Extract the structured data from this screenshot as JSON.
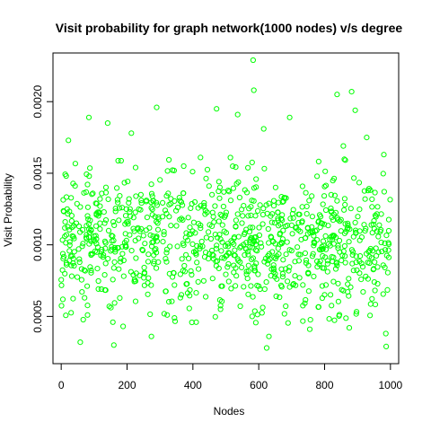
{
  "chart_data": {
    "type": "scatter",
    "title": "Visit probability for graph network(1000 nodes) v/s degree",
    "xlabel": "Nodes",
    "ylabel": "Visit Probability",
    "xlim": [
      -25,
      1025
    ],
    "ylim": [
      0.00017,
      0.00234
    ],
    "xticks": [
      0,
      200,
      400,
      600,
      800,
      1000
    ],
    "xtick_labels": [
      "0",
      "200",
      "400",
      "600",
      "800",
      "1000"
    ],
    "yticks": [
      0.0005,
      0.001,
      0.0015,
      0.002
    ],
    "ytick_labels": [
      "0.0005",
      "0.0010",
      "0.0015",
      "0.0020"
    ],
    "grid": false,
    "legend": "none",
    "marker": "open-circle",
    "point_color": "#00ff00",
    "n_points": 1000,
    "notable_points": [
      {
        "x": 583,
        "y": 0.00229
      },
      {
        "x": 585,
        "y": 0.00208
      },
      {
        "x": 882,
        "y": 0.00207
      },
      {
        "x": 838,
        "y": 0.00205
      },
      {
        "x": 290,
        "y": 0.00196
      },
      {
        "x": 472,
        "y": 0.00195
      },
      {
        "x": 893,
        "y": 0.00194
      },
      {
        "x": 536,
        "y": 0.00191
      },
      {
        "x": 694,
        "y": 0.00189
      },
      {
        "x": 84,
        "y": 0.00189
      },
      {
        "x": 141,
        "y": 0.00185
      },
      {
        "x": 615,
        "y": 0.00181
      },
      {
        "x": 213,
        "y": 0.00178
      },
      {
        "x": 928,
        "y": 0.00175
      },
      {
        "x": 22,
        "y": 0.00173
      },
      {
        "x": 857,
        "y": 0.00169
      },
      {
        "x": 980,
        "y": 0.00163
      },
      {
        "x": 160,
        "y": 0.0003
      },
      {
        "x": 274,
        "y": 0.00036
      },
      {
        "x": 624,
        "y": 0.00028
      },
      {
        "x": 58,
        "y": 0.00032
      },
      {
        "x": 987,
        "y": 0.00029
      },
      {
        "x": 631,
        "y": 0.00036
      },
      {
        "x": 986,
        "y": 0.00038
      },
      {
        "x": 188,
        "y": 0.00043
      },
      {
        "x": 410,
        "y": 0.00046
      },
      {
        "x": 755,
        "y": 0.00041
      },
      {
        "x": 875,
        "y": 0.00042
      }
    ],
    "bulk_distribution": {
      "mean": 0.00101,
      "sd": 0.00024
    }
  }
}
